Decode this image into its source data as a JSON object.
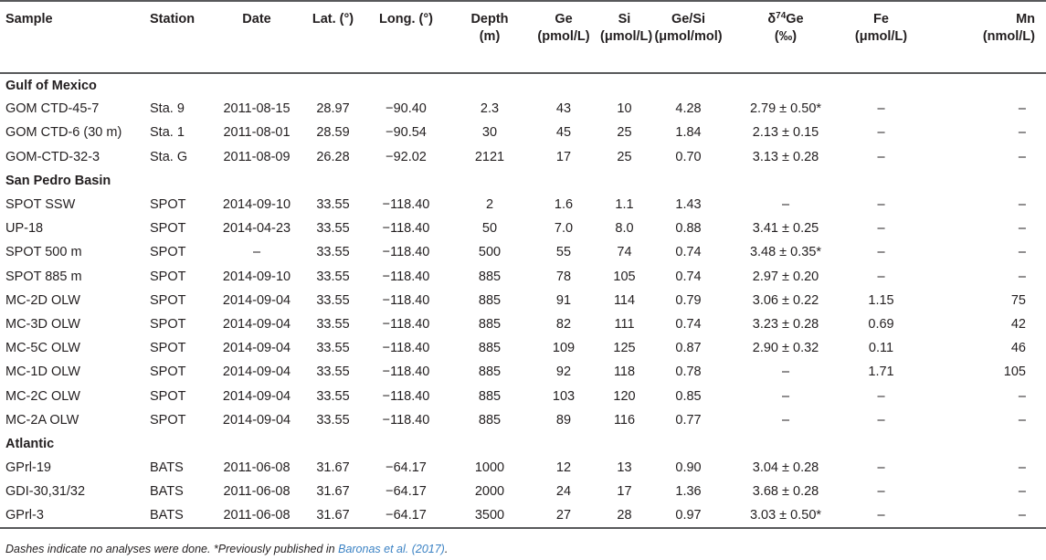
{
  "columns": [
    {
      "key": "sample",
      "label": "Sample"
    },
    {
      "key": "station",
      "label": "Station"
    },
    {
      "key": "date",
      "label": "Date"
    },
    {
      "key": "lat",
      "label": "Lat. (°)"
    },
    {
      "key": "long",
      "label": "Long. (°)"
    },
    {
      "key": "depth",
      "label": "Depth",
      "unit": "(m)"
    },
    {
      "key": "ge",
      "label": "Ge",
      "unit": "(pmol/L)"
    },
    {
      "key": "si",
      "label": "Si",
      "unit": "(μmol/L)"
    },
    {
      "key": "gesi",
      "label": "Ge/Si",
      "unit": "(μmol/mol)"
    },
    {
      "key": "d74ge",
      "label_prefix": "δ",
      "label_sup": "74",
      "label_suffix": "Ge",
      "unit": "(‰)"
    },
    {
      "key": "fe",
      "label": "Fe",
      "unit": "(μmol/L)"
    },
    {
      "key": "mn",
      "label": "Mn",
      "unit": "(nmol/L)"
    }
  ],
  "sections": [
    {
      "title": "Gulf of Mexico",
      "rows": [
        [
          "GOM CTD-45-7",
          "Sta. 9",
          "2011-08-15",
          "28.97",
          "−90.40",
          "2.3",
          "43",
          "10",
          "4.28",
          "2.79 ± 0.50*",
          "–",
          "–"
        ],
        [
          "GOM CTD-6 (30 m)",
          "Sta. 1",
          "2011-08-01",
          "28.59",
          "−90.54",
          "30",
          "45",
          "25",
          "1.84",
          "2.13 ± 0.15",
          "–",
          "–"
        ],
        [
          "GOM-CTD-32-3",
          "Sta. G",
          "2011-08-09",
          "26.28",
          "−92.02",
          "2121",
          "17",
          "25",
          "0.70",
          "3.13 ± 0.28",
          "–",
          "–"
        ]
      ]
    },
    {
      "title": "San Pedro Basin",
      "rows": [
        [
          "SPOT SSW",
          "SPOT",
          "2014-09-10",
          "33.55",
          "−118.40",
          "2",
          "1.6",
          "1.1",
          "1.43",
          "–",
          "–",
          "–"
        ],
        [
          "UP-18",
          "SPOT",
          "2014-04-23",
          "33.55",
          "−118.40",
          "50",
          "7.0",
          "8.0",
          "0.88",
          "3.41 ± 0.25",
          "–",
          "–"
        ],
        [
          "SPOT 500 m",
          "SPOT",
          "–",
          "33.55",
          "−118.40",
          "500",
          "55",
          "74",
          "0.74",
          "3.48 ± 0.35*",
          "–",
          "–"
        ],
        [
          "SPOT 885 m",
          "SPOT",
          "2014-09-10",
          "33.55",
          "−118.40",
          "885",
          "78",
          "105",
          "0.74",
          "2.97 ± 0.20",
          "–",
          "–"
        ],
        [
          "MC-2D OLW",
          "SPOT",
          "2014-09-04",
          "33.55",
          "−118.40",
          "885",
          "91",
          "114",
          "0.79",
          "3.06 ± 0.22",
          "1.15",
          "75"
        ],
        [
          "MC-3D OLW",
          "SPOT",
          "2014-09-04",
          "33.55",
          "−118.40",
          "885",
          "82",
          "111",
          "0.74",
          "3.23 ± 0.28",
          "0.69",
          "42"
        ],
        [
          "MC-5C OLW",
          "SPOT",
          "2014-09-04",
          "33.55",
          "−118.40",
          "885",
          "109",
          "125",
          "0.87",
          "2.90 ± 0.32",
          "0.11",
          "46"
        ],
        [
          "MC-1D OLW",
          "SPOT",
          "2014-09-04",
          "33.55",
          "−118.40",
          "885",
          "92",
          "118",
          "0.78",
          "–",
          "1.71",
          "105"
        ],
        [
          "MC-2C OLW",
          "SPOT",
          "2014-09-04",
          "33.55",
          "−118.40",
          "885",
          "103",
          "120",
          "0.85",
          "–",
          "–",
          "–"
        ],
        [
          "MC-2A OLW",
          "SPOT",
          "2014-09-04",
          "33.55",
          "−118.40",
          "885",
          "89",
          "116",
          "0.77",
          "–",
          "–",
          "–"
        ]
      ]
    },
    {
      "title": "Atlantic",
      "rows": [
        [
          "GPrl-19",
          "BATS",
          "2011-06-08",
          "31.67",
          "−64.17",
          "1000",
          "12",
          "13",
          "0.90",
          "3.04 ± 0.28",
          "–",
          "–"
        ],
        [
          "GDI-30,31/32",
          "BATS",
          "2011-06-08",
          "31.67",
          "−64.17",
          "2000",
          "24",
          "17",
          "1.36",
          "3.68 ± 0.28",
          "–",
          "–"
        ],
        [
          "GPrl-3",
          "BATS",
          "2011-06-08",
          "31.67",
          "−64.17",
          "3500",
          "27",
          "28",
          "0.97",
          "3.03 ± 0.50*",
          "–",
          "–"
        ]
      ]
    }
  ],
  "footnote": {
    "text": "Dashes indicate no analyses were done. *Previously published in ",
    "ref": "Baronas et al. (2017)",
    "end": "."
  },
  "colors": {
    "text": "#231f20",
    "rule": "#58595b",
    "link": "#3b82c4"
  }
}
